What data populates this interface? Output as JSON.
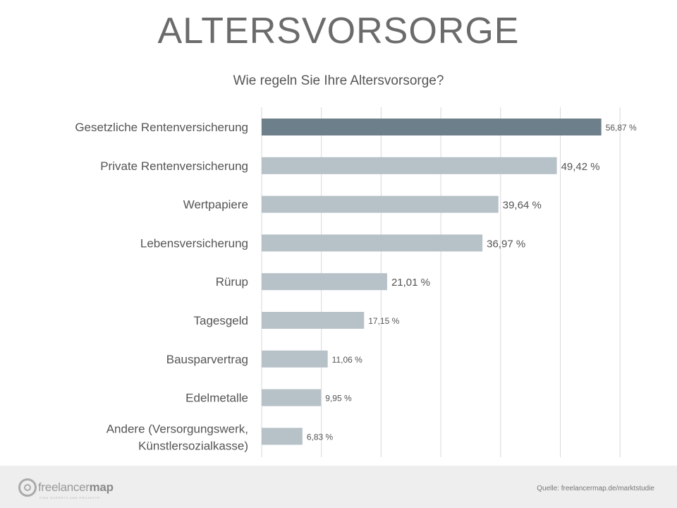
{
  "page": {
    "title": "ALTERSVORSORGE",
    "subtitle": "Wie regeln Sie Ihre Altersvorsorge?"
  },
  "chart_data": {
    "type": "bar",
    "orientation": "horizontal",
    "title": "",
    "categories": [
      "Gesetzliche Rentenversicherung",
      "Private Rentenversicherung",
      "Wertpapiere",
      "Lebensversicherung",
      "Rürup",
      "Tagesgeld",
      "Bausparvertrag",
      "Edelmetalle",
      "Andere (Versorgungswerk, Künstlersozialkasse)"
    ],
    "values": [
      56.87,
      49.42,
      39.64,
      36.97,
      21.01,
      17.15,
      11.06,
      9.95,
      6.83
    ],
    "value_labels": [
      "56,87 %",
      "49,42 %",
      "39,64 %",
      "36,97 %",
      "21,01 %",
      "17,15 %",
      "11,06 %",
      "9,95 %",
      "6,83 %"
    ],
    "xlim": [
      0,
      60
    ],
    "grid": true,
    "highlight_index": 0,
    "colors": {
      "highlight": "#6d7f8b",
      "bar": "#b7c1c8",
      "grid": "#d9d9d9"
    }
  },
  "footer": {
    "logo_text_light": "freelancer",
    "logo_text_bold": "map",
    "logo_tagline": "FIND EXPERTS AND PROJECTS",
    "source": "Quelle: freelancermap.de/marktstudie"
  }
}
